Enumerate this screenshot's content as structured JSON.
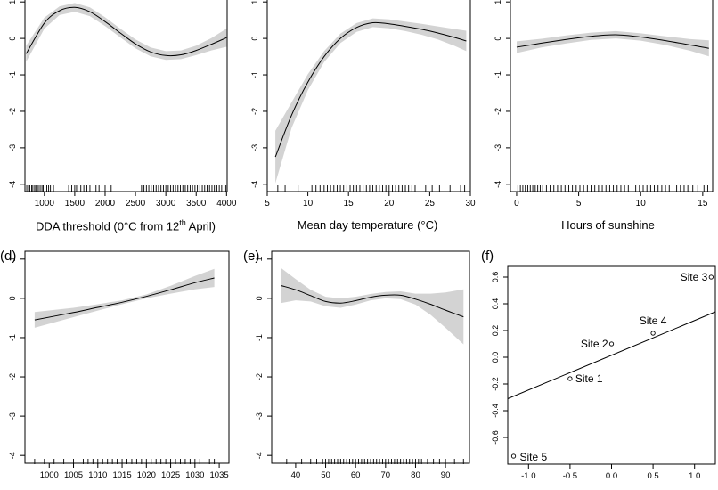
{
  "chart_data": [
    {
      "panel": "",
      "type": "line",
      "xlabel_main": "DDA threshold (0°C from 12",
      "xlabel_sup": "th",
      "xlabel_tail": " April)",
      "xlim": [
        680,
        4010
      ],
      "ylim": [
        -4.2,
        1.2
      ],
      "xticks": [
        1000,
        1500,
        2000,
        2500,
        3000,
        3500,
        4000
      ],
      "yticks": [
        -4,
        -3,
        -2,
        -1,
        0,
        1
      ],
      "curve": {
        "x": [
          700,
          1000,
          1250,
          1500,
          1750,
          2000,
          2250,
          2500,
          2750,
          3000,
          3250,
          3500,
          3750,
          4000
        ],
        "y": [
          -0.42,
          0.42,
          0.76,
          0.85,
          0.73,
          0.46,
          0.15,
          -0.15,
          -0.37,
          -0.47,
          -0.45,
          -0.33,
          -0.16,
          0.02
        ],
        "se": [
          0.22,
          0.15,
          0.12,
          0.12,
          0.12,
          0.12,
          0.12,
          0.12,
          0.12,
          0.12,
          0.12,
          0.13,
          0.17,
          0.25
        ]
      },
      "rug": [
        710,
        740,
        760,
        790,
        810,
        840,
        860,
        880,
        900,
        930,
        960,
        980,
        1010,
        1040,
        1070,
        1100,
        1150,
        1400,
        1450,
        1500,
        1530,
        1600,
        1650,
        1700,
        1750,
        1850,
        1900,
        2000,
        2100,
        2600,
        2640,
        2680,
        2720,
        2760,
        2800,
        2840,
        2880,
        2920,
        2960,
        3000,
        3040,
        3080,
        3120,
        3160,
        3200,
        3240,
        3280,
        3320,
        3360,
        3400,
        3440,
        3480,
        3520,
        3560,
        3600,
        3640,
        3680,
        3720,
        3760,
        3800,
        3840,
        3880,
        3920,
        3960,
        3990
      ]
    },
    {
      "panel": "",
      "type": "line",
      "xlabel_main": "Mean day temperature (°C)",
      "xlabel_sup": "",
      "xlabel_tail": "",
      "xlim": [
        5,
        30
      ],
      "ylim": [
        -4.2,
        1.2
      ],
      "xticks": [
        5,
        10,
        15,
        20,
        25,
        30
      ],
      "yticks": [
        -4,
        -3,
        -2,
        -1,
        0,
        1
      ],
      "curve": {
        "x": [
          6,
          8,
          10,
          12,
          14,
          16,
          18,
          20,
          22,
          24,
          26,
          28,
          29.5
        ],
        "y": [
          -3.25,
          -2.1,
          -1.2,
          -0.5,
          0.0,
          0.3,
          0.43,
          0.4,
          0.33,
          0.25,
          0.15,
          0.03,
          -0.07
        ],
        "se": [
          0.72,
          0.35,
          0.22,
          0.15,
          0.13,
          0.12,
          0.12,
          0.12,
          0.13,
          0.15,
          0.18,
          0.23,
          0.28
        ]
      },
      "rug": [
        6.3,
        7.2,
        8.8,
        10.5,
        11,
        11.5,
        12,
        12.4,
        12.8,
        13.2,
        13.6,
        14,
        14.4,
        14.8,
        15.2,
        15.6,
        16,
        16.4,
        16.8,
        17.2,
        17.6,
        18,
        18.4,
        18.8,
        19.2,
        19.6,
        20,
        20.4,
        20.8,
        21.2,
        21.6,
        22,
        22.4,
        22.8,
        23.2,
        23.8,
        24.5,
        25.3,
        26.2,
        27.5,
        28.8,
        29.3
      ]
    },
    {
      "panel": "",
      "type": "line",
      "xlabel_main": "Hours of sunshine",
      "xlabel_sup": "",
      "xlabel_tail": "",
      "xlim": [
        -0.5,
        15.8
      ],
      "ylim": [
        -4.2,
        1.2
      ],
      "xticks": [
        0,
        5,
        10,
        15
      ],
      "yticks": [
        -4,
        -3,
        -2,
        -1,
        0,
        1
      ],
      "curve": {
        "x": [
          0,
          2,
          4,
          6,
          8,
          10,
          12,
          14,
          15.5
        ],
        "y": [
          -0.24,
          -0.13,
          -0.03,
          0.06,
          0.1,
          0.04,
          -0.06,
          -0.18,
          -0.27
        ],
        "se": [
          0.16,
          0.12,
          0.11,
          0.1,
          0.1,
          0.1,
          0.12,
          0.16,
          0.22
        ]
      },
      "rug": [
        0.1,
        0.3,
        0.5,
        0.7,
        0.9,
        1.1,
        1.3,
        1.5,
        1.7,
        1.9,
        2.1,
        2.4,
        2.7,
        3,
        3.3,
        3.6,
        3.9,
        4.2,
        4.5,
        4.8,
        5.1,
        5.4,
        5.7,
        6,
        6.3,
        6.6,
        6.9,
        7.2,
        7.5,
        7.8,
        8.1,
        8.4,
        8.7,
        9,
        9.3,
        9.6,
        9.9,
        10.2,
        10.5,
        10.8,
        11.1,
        11.4,
        11.7,
        12,
        12.3,
        12.6,
        12.9,
        13.2,
        13.5,
        13.8,
        14.2,
        14.6,
        15.1,
        15.4
      ]
    },
    {
      "panel": "(d)",
      "type": "line",
      "xlabel_main": "",
      "xlabel_sup": "",
      "xlabel_tail": "",
      "xlim": [
        995,
        1037
      ],
      "ylim": [
        -4.2,
        1.2
      ],
      "xticks": [
        1000,
        1005,
        1010,
        1015,
        1020,
        1025,
        1030,
        1035
      ],
      "yticks": [
        -4,
        -3,
        -2,
        -1,
        0,
        1
      ],
      "curve": {
        "x": [
          997,
          1005,
          1010,
          1015,
          1020,
          1025,
          1030,
          1034
        ],
        "y": [
          -0.55,
          -0.36,
          -0.23,
          -0.1,
          0.05,
          0.22,
          0.4,
          0.52
        ],
        "se": [
          0.2,
          0.12,
          0.08,
          0.05,
          0.05,
          0.1,
          0.17,
          0.23
        ]
      },
      "rug": [
        997,
        999,
        1001,
        1003,
        1005,
        1007,
        1008,
        1009,
        1010,
        1011,
        1012,
        1013,
        1014,
        1015,
        1016,
        1017,
        1018,
        1019,
        1020,
        1021,
        1022,
        1023,
        1024,
        1025,
        1026,
        1027,
        1028,
        1029,
        1030,
        1031,
        1033,
        1034
      ]
    },
    {
      "panel": "(e)",
      "type": "line",
      "xlabel_main": "",
      "xlabel_sup": "",
      "xlabel_tail": "",
      "xlim": [
        32,
        98
      ],
      "ylim": [
        -4.2,
        1.2
      ],
      "xticks": [
        40,
        50,
        60,
        70,
        80,
        90
      ],
      "yticks": [
        -4,
        -3,
        -2,
        -1,
        0,
        1
      ],
      "curve": {
        "x": [
          35,
          40,
          45,
          50,
          55,
          60,
          65,
          70,
          75,
          80,
          85,
          90,
          96
        ],
        "y": [
          0.33,
          0.22,
          0.07,
          -0.08,
          -0.12,
          -0.06,
          0.03,
          0.08,
          0.08,
          -0.02,
          -0.15,
          -0.3,
          -0.47
        ],
        "se": [
          0.45,
          0.27,
          0.15,
          0.12,
          0.12,
          0.1,
          0.08,
          0.08,
          0.1,
          0.14,
          0.27,
          0.45,
          0.7
        ]
      },
      "rug": [
        37,
        42,
        45,
        47,
        49,
        50,
        51,
        52,
        53,
        54,
        55,
        56,
        57,
        58,
        59,
        60,
        61,
        62,
        63,
        64,
        65,
        66,
        67,
        68,
        69,
        70,
        71,
        72,
        73,
        74,
        75,
        76,
        77,
        78,
        79,
        80,
        81,
        82,
        84,
        86,
        88,
        90,
        93,
        96
      ]
    },
    {
      "panel": "(f)",
      "type": "scatter",
      "xlabel_main": "",
      "xlabel_sup": "",
      "xlabel_tail": "",
      "xlim": [
        -1.25,
        1.25
      ],
      "ylim": [
        -0.8,
        0.68
      ],
      "xticks": [
        -1.0,
        -0.5,
        0.0,
        0.5,
        1.0
      ],
      "xtick_labels": [
        "-1.0",
        "-0.5",
        "0.0",
        "0.5",
        "1.0"
      ],
      "yticks": [
        -0.6,
        -0.4,
        -0.2,
        0.0,
        0.2,
        0.4,
        0.6
      ],
      "ytick_labels": [
        "-0.6",
        "-0.4",
        "-0.2",
        "0.0",
        "0.2",
        "0.4",
        "0.6"
      ],
      "points": [
        {
          "label": "Site 1",
          "x": -0.5,
          "y": -0.16
        },
        {
          "label": "Site 2",
          "x": 0.0,
          "y": 0.1
        },
        {
          "label": "Site 3",
          "x": 1.2,
          "y": 0.6
        },
        {
          "label": "Site 4",
          "x": 0.5,
          "y": 0.18
        },
        {
          "label": "Site 5",
          "x": -1.18,
          "y": -0.74
        }
      ],
      "fit_line": {
        "x": [
          -1.25,
          1.25
        ],
        "y": [
          -0.31,
          0.34
        ]
      }
    }
  ]
}
